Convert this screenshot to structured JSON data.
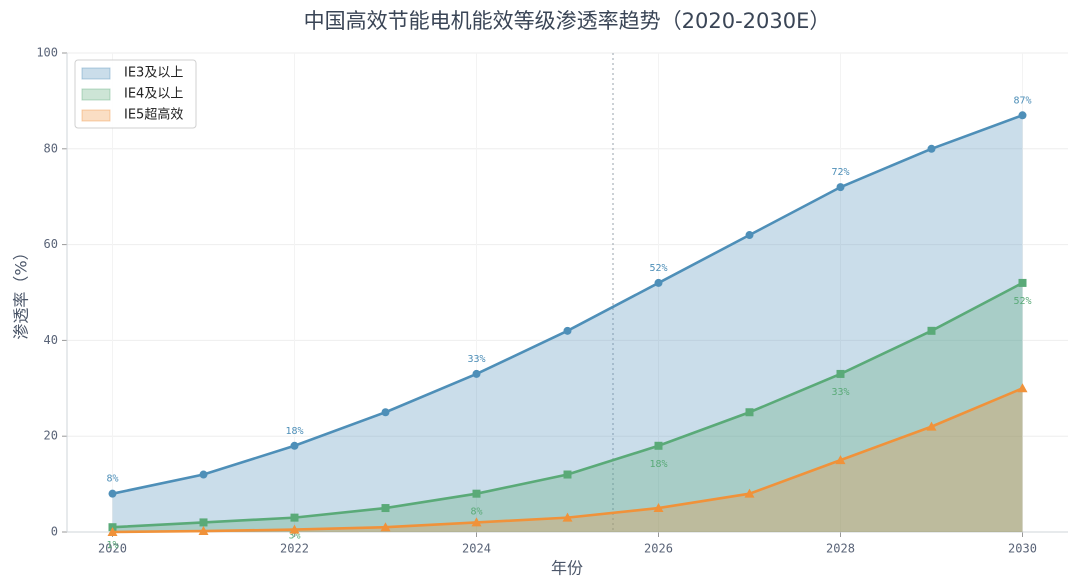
{
  "chart_data": {
    "type": "area_line",
    "title": "中国高效节能电机能效等级渗透率趋势（2020-2030E）",
    "xlabel": "年份",
    "ylabel": "渗透率（%）",
    "x": [
      2020,
      2021,
      2022,
      2023,
      2024,
      2025,
      2026,
      2027,
      2028,
      2029,
      2030
    ],
    "series": [
      {
        "name": "IE3及以上",
        "color": "#4e8fb8",
        "fill": "#c6dbe8",
        "marker": "circle",
        "values": [
          8,
          12,
          18,
          25,
          33,
          42,
          52,
          62,
          72,
          80,
          87
        ],
        "value_labels": [
          "8%",
          null,
          "18%",
          null,
          "33%",
          null,
          "52%",
          null,
          "72%",
          null,
          "87%"
        ],
        "label_side": "above"
      },
      {
        "name": "IE4及以上",
        "color": "#5aaa78",
        "fill": "#a8d4b8",
        "marker": "square",
        "values": [
          1,
          2,
          3,
          5,
          8,
          12,
          18,
          25,
          33,
          42,
          52
        ],
        "value_labels": [
          "1%",
          null,
          "3%",
          null,
          "8%",
          null,
          "18%",
          null,
          "33%",
          null,
          "52%"
        ],
        "label_side": "below"
      },
      {
        "name": "IE5超高效",
        "color": "#f0923a",
        "fill": "#f5c9a0",
        "marker": "triangle",
        "values": [
          0,
          0.2,
          0.5,
          1,
          2,
          3,
          5,
          8,
          15,
          22,
          30
        ]
      }
    ],
    "xlim": [
      2019.5,
      2030.5
    ],
    "xticks": [
      2020,
      2022,
      2024,
      2026,
      2028,
      2030
    ],
    "ylim": [
      0,
      100
    ],
    "yticks": [
      0,
      20,
      40,
      60,
      80,
      100
    ],
    "vline_x": 2025.5,
    "grid": true,
    "legend": "upper left"
  }
}
